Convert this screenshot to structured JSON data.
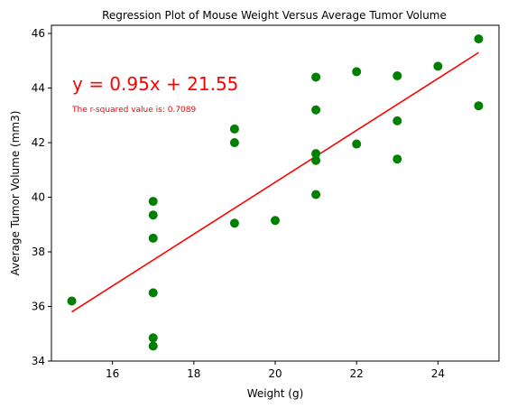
{
  "chart_data": {
    "type": "scatter",
    "title": "Regression Plot of Mouse Weight Versus Average Tumor Volume",
    "xlabel": "Weight (g)",
    "ylabel": "Average Tumor Volume (mm3)",
    "xlim": [
      14.5,
      25.5
    ],
    "ylim": [
      34,
      46.3
    ],
    "xticks": [
      16,
      18,
      20,
      22,
      24
    ],
    "yticks": [
      34,
      36,
      38,
      40,
      42,
      44,
      46
    ],
    "grid": false,
    "points": [
      {
        "x": 15,
        "y": 36.2
      },
      {
        "x": 17,
        "y": 39.85
      },
      {
        "x": 17,
        "y": 39.35
      },
      {
        "x": 17,
        "y": 38.5
      },
      {
        "x": 17,
        "y": 36.5
      },
      {
        "x": 17,
        "y": 34.85
      },
      {
        "x": 17,
        "y": 34.55
      },
      {
        "x": 19,
        "y": 42.5
      },
      {
        "x": 19,
        "y": 42.0
      },
      {
        "x": 19,
        "y": 39.05
      },
      {
        "x": 20,
        "y": 39.15
      },
      {
        "x": 21,
        "y": 44.4
      },
      {
        "x": 21,
        "y": 43.2
      },
      {
        "x": 21,
        "y": 41.6
      },
      {
        "x": 21,
        "y": 41.35
      },
      {
        "x": 21,
        "y": 40.1
      },
      {
        "x": 22,
        "y": 44.6
      },
      {
        "x": 22,
        "y": 41.95
      },
      {
        "x": 23,
        "y": 44.45
      },
      {
        "x": 23,
        "y": 42.8
      },
      {
        "x": 23,
        "y": 41.4
      },
      {
        "x": 24,
        "y": 44.8
      },
      {
        "x": 25,
        "y": 45.8
      },
      {
        "x": 25,
        "y": 43.35
      }
    ],
    "regression": {
      "slope": 0.95,
      "intercept": 21.55,
      "x_range": [
        15,
        25
      ]
    },
    "annotations": {
      "equation": "y = 0.95x + 21.55",
      "r_squared": "The r-squared value is: 0.7089"
    },
    "colors": {
      "points": "#008000",
      "line": "#ff0000",
      "annotation": "#ff0000"
    }
  }
}
